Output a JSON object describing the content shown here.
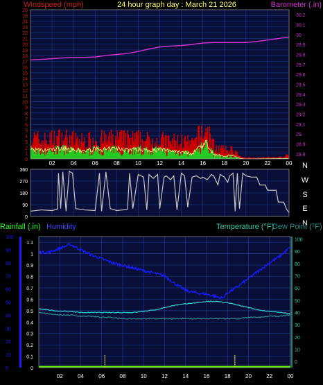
{
  "header": {
    "left_label": "Windspeed (mph)",
    "center_label": "24 hour graph day : March 21 2026",
    "right_label": "Barometer (.in)"
  },
  "bottom_header": {
    "left1": "Rainfall (.in)",
    "left2": "Humidity",
    "right1": "Temperature (°F)",
    "right2": "Dew Point (°F)"
  },
  "colors": {
    "background": "#000000",
    "plot_bg": "#0a0f3a",
    "grid": "#1f3a8a",
    "wind_gust": "#cc0000",
    "wind_avg": "#22cc22",
    "wind_avg_line": "#ffee88",
    "barometer": "#cc33cc",
    "direction": "#c8c8c8",
    "humidity": "#1a1aff",
    "temperature": "#33c9c9",
    "dewpoint": "#2a8f8f",
    "rain": "#66ff00",
    "left_axis_wind": "#cc2222",
    "left_axis_rain": "#1a1aff",
    "right_axis_baro": "#cc33cc",
    "right_axis_temp": "#33ccaa",
    "header_center": "#ffff66",
    "rain_label": "#22ff22",
    "hum_label": "#4444ff"
  },
  "chart_data": [
    {
      "type": "area",
      "title": "24 hour graph day : March 21 2026",
      "x_ticks": [
        "02",
        "04",
        "06",
        "08",
        "10",
        "12",
        "14",
        "16",
        "18",
        "20",
        "22",
        "00"
      ],
      "x_range_hours": [
        0,
        24
      ],
      "series": [
        {
          "name": "Windspeed (mph)",
          "axis": "left",
          "ylim": [
            0,
            26
          ],
          "yticks": [
            "0",
            "1",
            "2",
            "3",
            "4",
            "5",
            "6",
            "7",
            "8",
            "9",
            "10",
            "11",
            "12",
            "13",
            "14",
            "15",
            "16",
            "17",
            "18",
            "19",
            "20",
            "21",
            "22",
            "23",
            "24",
            "25",
            "26"
          ],
          "gust_profile": [
            [
              0.0,
              4.5
            ],
            [
              1.0,
              3.8
            ],
            [
              2.0,
              4.2
            ],
            [
              3.0,
              4.6
            ],
            [
              4.0,
              4.0
            ],
            [
              5.0,
              3.6
            ],
            [
              6.0,
              4.3
            ],
            [
              7.0,
              4.0
            ],
            [
              8.0,
              4.4
            ],
            [
              9.0,
              4.1
            ],
            [
              10.0,
              4.2
            ],
            [
              11.0,
              3.8
            ],
            [
              12.0,
              4.0
            ],
            [
              13.0,
              3.6
            ],
            [
              14.0,
              3.8
            ],
            [
              15.0,
              3.0
            ],
            [
              15.8,
              5.5
            ],
            [
              16.4,
              6.0
            ],
            [
              17.0,
              2.6
            ],
            [
              18.0,
              1.8
            ],
            [
              18.8,
              2.0
            ],
            [
              19.4,
              0.4
            ],
            [
              20.0,
              0.3
            ],
            [
              22.0,
              0.3
            ],
            [
              23.6,
              0.4
            ],
            [
              23.8,
              1.0
            ],
            [
              24.0,
              0.4
            ]
          ],
          "avg_profile": [
            [
              0.0,
              1.8
            ],
            [
              1.0,
              1.5
            ],
            [
              2.0,
              1.7
            ],
            [
              3.0,
              2.0
            ],
            [
              4.0,
              1.6
            ],
            [
              5.0,
              1.4
            ],
            [
              6.0,
              1.8
            ],
            [
              7.0,
              1.7
            ],
            [
              8.0,
              1.9
            ],
            [
              9.0,
              1.7
            ],
            [
              10.0,
              1.8
            ],
            [
              11.0,
              1.6
            ],
            [
              12.0,
              1.7
            ],
            [
              13.0,
              1.5
            ],
            [
              14.0,
              1.4
            ],
            [
              15.0,
              0.9
            ],
            [
              15.8,
              2.5
            ],
            [
              16.4,
              2.8
            ],
            [
              17.0,
              0.8
            ],
            [
              18.0,
              0.5
            ],
            [
              18.8,
              0.7
            ],
            [
              19.4,
              0.1
            ],
            [
              20.0,
              0.0
            ],
            [
              24.0,
              0.1
            ]
          ]
        },
        {
          "name": "Barometer (.in)",
          "axis": "right",
          "ylim": [
            28.75,
            30.25
          ],
          "yticks": [
            "28.8",
            "28.9",
            "29",
            "29.1",
            "29.2",
            "29.3",
            "29.4",
            "29.5",
            "29.6",
            "29.7",
            "29.8",
            "29.9",
            "30",
            "30.1",
            "30.2"
          ],
          "points": [
            [
              0,
              29.745
            ],
            [
              1,
              29.75
            ],
            [
              2,
              29.757
            ],
            [
              3,
              29.765
            ],
            [
              4,
              29.77
            ],
            [
              5,
              29.77
            ],
            [
              6,
              29.775
            ],
            [
              7,
              29.79
            ],
            [
              8,
              29.8
            ],
            [
              9,
              29.81
            ],
            [
              10,
              29.83
            ],
            [
              11,
              29.855
            ],
            [
              12,
              29.875
            ],
            [
              13,
              29.885
            ],
            [
              14,
              29.89
            ],
            [
              15,
              29.9
            ],
            [
              16,
              29.915
            ],
            [
              17,
              29.92
            ],
            [
              18,
              29.92
            ],
            [
              19,
              29.92
            ],
            [
              20,
              29.92
            ],
            [
              21,
              29.93
            ],
            [
              22,
              29.945
            ],
            [
              23,
              29.96
            ],
            [
              24,
              29.975
            ]
          ]
        }
      ]
    },
    {
      "type": "line",
      "x_ticks": [
        "02",
        "04",
        "06",
        "08",
        "10",
        "12",
        "14",
        "16",
        "18",
        "20",
        "22",
        "00"
      ],
      "series": [
        {
          "name": "Wind direction",
          "axis": "left",
          "ylim": [
            0,
            360
          ],
          "yticks": [
            "0",
            "90",
            "180",
            "270",
            "360"
          ],
          "right_labels": [
            "N",
            "W",
            "S",
            "E",
            "N"
          ],
          "points": [
            [
              0,
              40
            ],
            [
              1,
              50
            ],
            [
              2,
              45
            ],
            [
              2.5,
              55
            ],
            [
              2.6,
              330
            ],
            [
              2.8,
              60
            ],
            [
              3.0,
              340
            ],
            [
              3.3,
              40
            ],
            [
              3.6,
              345
            ],
            [
              3.9,
              330
            ],
            [
              4.2,
              60
            ],
            [
              5.0,
              50
            ],
            [
              6.0,
              45
            ],
            [
              6.4,
              330
            ],
            [
              6.6,
              40
            ],
            [
              7.0,
              340
            ],
            [
              7.4,
              60
            ],
            [
              8.0,
              45
            ],
            [
              8.6,
              50
            ],
            [
              9.0,
              55
            ],
            [
              9.2,
              330
            ],
            [
              9.5,
              60
            ],
            [
              10.0,
              320
            ],
            [
              10.5,
              300
            ],
            [
              10.8,
              50
            ],
            [
              11.0,
              320
            ],
            [
              11.4,
              290
            ],
            [
              11.8,
              320
            ],
            [
              12.0,
              60
            ],
            [
              12.4,
              300
            ],
            [
              12.6,
              310
            ],
            [
              13.0,
              280
            ],
            [
              13.3,
              310
            ],
            [
              13.6,
              50
            ],
            [
              14.0,
              330
            ],
            [
              14.3,
              310
            ],
            [
              14.6,
              70
            ],
            [
              15.0,
              300
            ],
            [
              15.4,
              310
            ],
            [
              15.8,
              290
            ],
            [
              16.0,
              300
            ],
            [
              16.4,
              280
            ],
            [
              16.8,
              320
            ],
            [
              17.0,
              310
            ],
            [
              17.4,
              240
            ],
            [
              17.6,
              320
            ],
            [
              18.0,
              300
            ],
            [
              18.3,
              260
            ],
            [
              18.5,
              310
            ],
            [
              18.8,
              330
            ],
            [
              19.0,
              40
            ],
            [
              19.2,
              330
            ],
            [
              19.4,
              60
            ],
            [
              19.7,
              330
            ],
            [
              20.0,
              310
            ],
            [
              20.5,
              300
            ],
            [
              21.0,
              300
            ],
            [
              21.3,
              240
            ],
            [
              21.8,
              240
            ],
            [
              22.0,
              200
            ],
            [
              22.8,
              200
            ],
            [
              23.0,
              110
            ],
            [
              23.5,
              110
            ],
            [
              23.8,
              50
            ],
            [
              24.0,
              30
            ]
          ]
        }
      ]
    },
    {
      "type": "line",
      "x_ticks": [
        "02",
        "04",
        "06",
        "08",
        "10",
        "12",
        "14",
        "16",
        "18",
        "20",
        "22",
        "00"
      ],
      "series": [
        {
          "name": "Humidity",
          "axis": "left_outer",
          "ylim": [
            0,
            100
          ],
          "yticks": [
            "0",
            "10",
            "20",
            "30",
            "40",
            "50",
            "60",
            "70",
            "80",
            "90",
            "100"
          ],
          "points": [
            [
              0,
              88
            ],
            [
              1,
              88
            ],
            [
              2,
              91
            ],
            [
              3,
              94
            ],
            [
              4,
              90
            ],
            [
              5,
              86
            ],
            [
              6,
              83
            ],
            [
              7,
              80
            ],
            [
              8,
              78
            ],
            [
              9,
              76
            ],
            [
              10,
              74
            ],
            [
              11,
              72
            ],
            [
              12,
              70
            ],
            [
              13,
              64
            ],
            [
              14,
              59
            ],
            [
              15,
              57
            ],
            [
              16,
              56
            ],
            [
              17,
              54
            ],
            [
              17.5,
              53
            ],
            [
              18,
              57
            ],
            [
              19,
              62
            ],
            [
              20,
              68
            ],
            [
              21,
              74
            ],
            [
              22,
              80
            ],
            [
              23,
              85
            ],
            [
              24,
              92
            ]
          ]
        },
        {
          "name": "Rainfall (.in)",
          "axis": "left_inner",
          "ylim": [
            0,
            1.15
          ],
          "yticks": [
            "0",
            "0.1",
            "0.2",
            "0.3",
            "0.4",
            "0.5",
            "0.6",
            "0.7",
            "0.8",
            "0.9",
            "1",
            "1.1"
          ],
          "points": [
            [
              0,
              0
            ],
            [
              24,
              0
            ]
          ],
          "markers_hours": [
            6.3,
            18.7
          ]
        },
        {
          "name": "Temperature (°F)",
          "axis": "right",
          "ylim": [
            -5,
            102
          ],
          "yticks": [
            "0",
            "10",
            "20",
            "30",
            "40",
            "50",
            "60",
            "70",
            "80",
            "90",
            "100"
          ],
          "points": [
            [
              0,
              43
            ],
            [
              1,
              42
            ],
            [
              2,
              41
            ],
            [
              3,
              41
            ],
            [
              4,
              40
            ],
            [
              5,
              40
            ],
            [
              6,
              40
            ],
            [
              7,
              40
            ],
            [
              8,
              40
            ],
            [
              9,
              40
            ],
            [
              10,
              41
            ],
            [
              11,
              42
            ],
            [
              12,
              44
            ],
            [
              13,
              46
            ],
            [
              14,
              47
            ],
            [
              15,
              48
            ],
            [
              16,
              49
            ],
            [
              17,
              49
            ],
            [
              18,
              48
            ],
            [
              19,
              46
            ],
            [
              20,
              44
            ],
            [
              21,
              42
            ],
            [
              22,
              41
            ],
            [
              23,
              40
            ],
            [
              24,
              39
            ]
          ]
        },
        {
          "name": "Dew Point (°F)",
          "axis": "right",
          "ylim": [
            -5,
            102
          ],
          "points": [
            [
              0,
              40
            ],
            [
              1,
              39
            ],
            [
              2,
              38
            ],
            [
              3,
              38
            ],
            [
              4,
              37
            ],
            [
              5,
              37
            ],
            [
              6,
              36
            ],
            [
              7,
              36
            ],
            [
              8,
              35
            ],
            [
              9,
              35
            ],
            [
              10,
              35
            ],
            [
              11,
              35
            ],
            [
              12,
              35
            ],
            [
              13,
              35
            ],
            [
              14,
              35
            ],
            [
              15,
              35
            ],
            [
              16,
              35
            ],
            [
              17,
              35
            ],
            [
              18,
              35
            ],
            [
              19,
              35
            ],
            [
              20,
              36
            ],
            [
              21,
              36
            ],
            [
              22,
              37
            ],
            [
              23,
              37
            ],
            [
              24,
              38
            ]
          ]
        }
      ]
    }
  ]
}
